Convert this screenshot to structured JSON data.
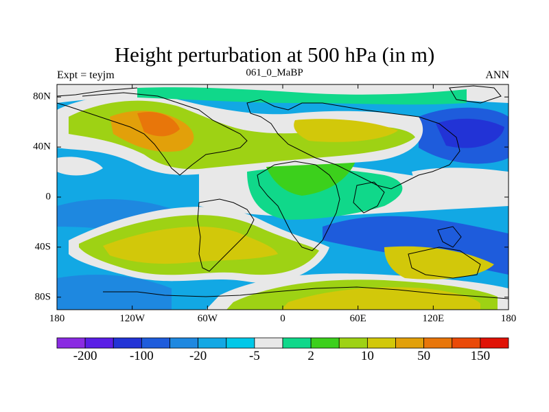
{
  "title": "Height perturbation at 500 hPa (in m)",
  "left_label": "Expt = teyjm",
  "center_label": "061_0_MaBP",
  "right_label": "ANN",
  "lon_ticks": [
    {
      "value": -180,
      "label": "180"
    },
    {
      "value": -120,
      "label": "120W"
    },
    {
      "value": -60,
      "label": "60W"
    },
    {
      "value": 0,
      "label": "0"
    },
    {
      "value": 60,
      "label": "60E"
    },
    {
      "value": 120,
      "label": "120E"
    },
    {
      "value": 180,
      "label": "180"
    }
  ],
  "lat_ticks": [
    {
      "value": 80,
      "label": "80N"
    },
    {
      "value": 40,
      "label": "40N"
    },
    {
      "value": 0,
      "label": "0"
    },
    {
      "value": -40,
      "label": "40S"
    },
    {
      "value": -80,
      "label": "80S"
    }
  ],
  "colorbar": {
    "colors": [
      "#8a2be2",
      "#5a1ee6",
      "#2233d6",
      "#1e5cdc",
      "#1e88e0",
      "#12a8e4",
      "#00c8e8",
      "#e8e8e8",
      "#10d88a",
      "#3cd01c",
      "#9ed214",
      "#d2c80a",
      "#e2a00a",
      "#e8760a",
      "#ea4a08",
      "#e01206"
    ],
    "labels": [
      {
        "boundary": 2,
        "text": "-200"
      },
      {
        "boundary": 4,
        "text": "-100"
      },
      {
        "boundary": 6,
        "text": "-20"
      },
      {
        "boundary": 8,
        "text": "-5"
      },
      {
        "boundary": 10,
        "text": "2"
      },
      {
        "boundary": 12,
        "text": "10"
      },
      {
        "boundary": 14,
        "text": "50"
      },
      {
        "boundary": 16,
        "text": "150"
      }
    ]
  }
}
